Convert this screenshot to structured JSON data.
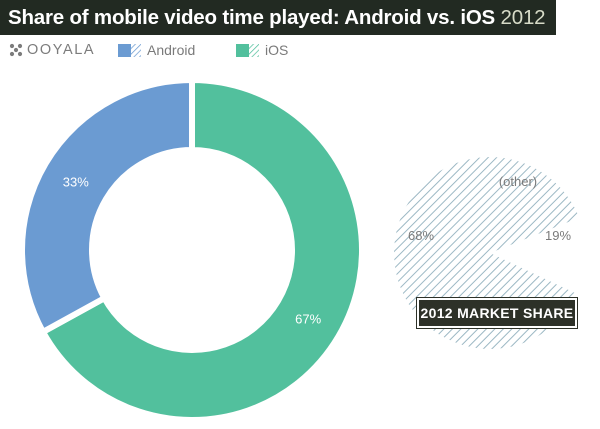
{
  "header": {
    "title": "Share of mobile video time played: Android vs. iOS",
    "title_year": "2012",
    "logo": "OOYALA",
    "logo_icon": "ooyala-logo-icon"
  },
  "colors": {
    "android": "#6b9bd2",
    "ios": "#52c09d",
    "title_bg": "#222a22",
    "hatch": "#9cb8c4"
  },
  "chart_data": [
    {
      "type": "pie",
      "title": "Share of mobile video time played: Android vs. iOS 2012",
      "categories": [
        "Android",
        "iOS"
      ],
      "values": [
        33,
        67
      ],
      "labels": [
        "33%",
        "67%"
      ],
      "legend": "top-left"
    },
    {
      "type": "pie",
      "title": "2012 MARKET SHARE",
      "categories": [
        "",
        "",
        "(other)"
      ],
      "values": [
        68,
        19,
        13
      ],
      "labels": [
        "68%",
        "19%",
        "(other)"
      ]
    }
  ]
}
